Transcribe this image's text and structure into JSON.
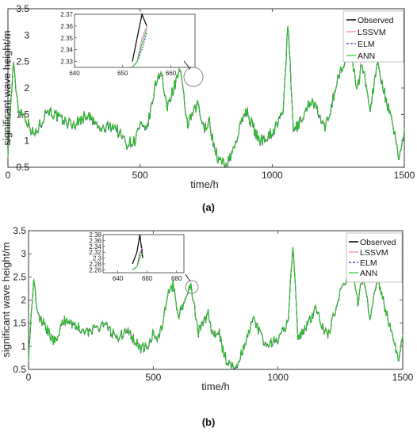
{
  "figure": {
    "panel_a_caption": "(a)",
    "panel_b_caption": "(b)"
  },
  "colors": {
    "Observed": "#000000",
    "LSSVM": "#ff77c0",
    "ELM": "#2a2aa0",
    "ANN": "#22cc22"
  },
  "chart_data": [
    {
      "type": "line",
      "panel": "(a)",
      "xlabel": "time/h",
      "ylabel": "significant wave height/m",
      "xlim": [
        0,
        1500
      ],
      "ylim": [
        0.5,
        3.5
      ],
      "xticks": [
        "0",
        "500",
        "1000",
        "1500"
      ],
      "yticks": [
        "0.5",
        "1",
        "1.5",
        "2",
        "2.5",
        "3",
        "3.5"
      ],
      "grid": false,
      "legend_position": "top-right",
      "legend": [
        "Observed",
        "LSSVM",
        "ELM",
        "ANN"
      ],
      "series": [
        {
          "name": "Observed",
          "style": "solid"
        },
        {
          "name": "LSSVM",
          "style": "solid"
        },
        {
          "name": "ELM",
          "style": "dashed"
        },
        {
          "name": "ANN",
          "style": "solid"
        }
      ],
      "x": [
        0,
        20,
        40,
        60,
        80,
        100,
        150,
        200,
        250,
        300,
        350,
        400,
        450,
        480,
        500,
        520,
        540,
        560,
        580,
        600,
        620,
        650,
        680,
        700,
        720,
        740,
        760,
        780,
        800,
        830,
        860,
        900,
        950,
        1000,
        1040,
        1060,
        1080,
        1100,
        1150,
        1200,
        1250,
        1300,
        1320,
        1340,
        1370,
        1400,
        1430,
        1460,
        1480,
        1500
      ],
      "observed": [
        0.8,
        2.45,
        1.6,
        1.5,
        1.3,
        1.1,
        1.6,
        1.4,
        1.3,
        1.5,
        1.2,
        1.3,
        0.95,
        1.0,
        1.3,
        1.15,
        1.55,
        2.1,
        2.35,
        1.6,
        1.9,
        2.35,
        1.3,
        1.5,
        1.7,
        1.2,
        1.4,
        0.9,
        0.6,
        0.55,
        0.95,
        1.6,
        1.0,
        1.15,
        1.5,
        3.2,
        1.2,
        1.3,
        1.8,
        1.2,
        2.2,
        2.75,
        1.9,
        2.5,
        1.6,
        2.5,
        1.8,
        1.2,
        0.7,
        1.15
      ],
      "inset": {
        "xlim": [
          640,
          665
        ],
        "ylim": [
          2.325,
          2.37
        ],
        "xticks": [
          "640",
          "650",
          "660"
        ],
        "yticks": [
          "2.33",
          "2.34",
          "2.35",
          "2.36",
          "2.37"
        ],
        "peak_x": [
          652,
          653,
          654,
          655
        ],
        "observed": [
          2.33,
          2.35,
          2.37,
          2.36
        ],
        "lssvm": [
          2.325,
          2.33,
          2.35,
          2.36
        ],
        "elm": [
          2.325,
          2.33,
          2.34,
          2.355
        ],
        "ann": [
          2.325,
          2.33,
          2.345,
          2.358
        ]
      }
    },
    {
      "type": "line",
      "panel": "(b)",
      "xlabel": "time/h",
      "ylabel": "significant wave height/m",
      "xlim": [
        0,
        1500
      ],
      "ylim": [
        0.5,
        3.5
      ],
      "xticks": [
        "0",
        "500",
        "1000",
        "1500"
      ],
      "yticks": [
        "0.5",
        "1",
        "1.5",
        "2",
        "2.5",
        "3",
        "3.5"
      ],
      "grid": false,
      "legend_position": "top-right",
      "legend": [
        "Observed",
        "LSSVM",
        "ELM",
        "ANN"
      ],
      "series": [
        {
          "name": "Observed",
          "style": "solid"
        },
        {
          "name": "LSSVM",
          "style": "solid"
        },
        {
          "name": "ELM",
          "style": "dashed"
        },
        {
          "name": "ANN",
          "style": "solid"
        }
      ],
      "x": [
        0,
        20,
        40,
        60,
        80,
        100,
        150,
        200,
        250,
        300,
        350,
        400,
        450,
        480,
        500,
        520,
        540,
        560,
        580,
        600,
        620,
        650,
        680,
        700,
        720,
        740,
        760,
        780,
        800,
        830,
        860,
        900,
        950,
        1000,
        1040,
        1060,
        1080,
        1100,
        1150,
        1200,
        1250,
        1300,
        1320,
        1340,
        1370,
        1400,
        1430,
        1460,
        1480,
        1500
      ],
      "observed": [
        0.8,
        2.45,
        1.6,
        1.5,
        1.3,
        1.1,
        1.6,
        1.4,
        1.3,
        1.5,
        1.2,
        1.3,
        0.95,
        1.0,
        1.3,
        1.15,
        1.55,
        2.1,
        2.35,
        1.6,
        1.9,
        2.35,
        1.3,
        1.5,
        1.7,
        1.2,
        1.4,
        0.9,
        0.6,
        0.55,
        0.95,
        1.6,
        1.0,
        1.15,
        1.5,
        3.2,
        1.2,
        1.3,
        1.8,
        1.2,
        2.2,
        2.75,
        1.9,
        2.5,
        1.6,
        2.5,
        1.8,
        1.2,
        0.7,
        1.15
      ],
      "inset": {
        "xlim": [
          630,
          685
        ],
        "ylim": [
          2.25,
          2.38
        ],
        "xticks": [
          "640",
          "660",
          "680"
        ],
        "yticks": [
          "2.26",
          "2.28",
          "2.3",
          "2.32",
          "2.34",
          "2.36",
          "2.38"
        ],
        "peak_x": [
          650,
          653,
          655,
          657
        ],
        "observed": [
          2.28,
          2.32,
          2.38,
          2.3
        ],
        "lssvm": [
          2.26,
          2.27,
          2.32,
          2.34
        ],
        "elm": [
          2.26,
          2.27,
          2.31,
          2.33
        ],
        "ann": [
          2.26,
          2.27,
          2.3,
          2.32
        ]
      }
    }
  ]
}
